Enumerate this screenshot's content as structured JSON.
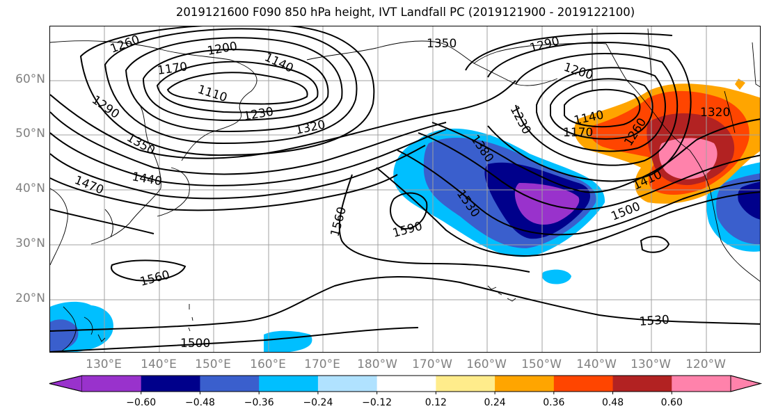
{
  "title": "2019121600 F090 850 hPa height, IVT Landfall PC (2019121900 - 2019122100)",
  "lat_labels": [
    "60°N",
    "50°N",
    "40°N",
    "30°N",
    "20°N"
  ],
  "lon_labels": [
    "130°E",
    "140°E",
    "150°E",
    "160°E",
    "170°E",
    "180°W",
    "170°W",
    "160°W",
    "150°W",
    "140°W",
    "130°W",
    "120°W"
  ],
  "contour_labels": [
    "1260",
    "1200",
    "1140",
    "1170",
    "1110",
    "1290",
    "1230",
    "1350",
    "1320",
    "1440",
    "1470",
    "1290",
    "1200",
    "1140",
    "1170",
    "1230",
    "1260",
    "1320",
    "1380",
    "1410",
    "1530",
    "1500",
    "1560",
    "1590",
    "1560",
    "1500",
    "1530"
  ],
  "colorbar": {
    "tick_labels": [
      "−0.60",
      "−0.48",
      "−0.36",
      "−0.24",
      "−0.12",
      "0.12",
      "0.24",
      "0.36",
      "0.48",
      "0.60"
    ],
    "colors": [
      "#9932CC",
      "#00008B",
      "#3A5FCD",
      "#00BFFF",
      "#B0E2FF",
      "#FFFFFF",
      "#FFEC8B",
      "#FFA500",
      "#FF4500",
      "#B22222",
      "#FF82AB"
    ]
  }
}
